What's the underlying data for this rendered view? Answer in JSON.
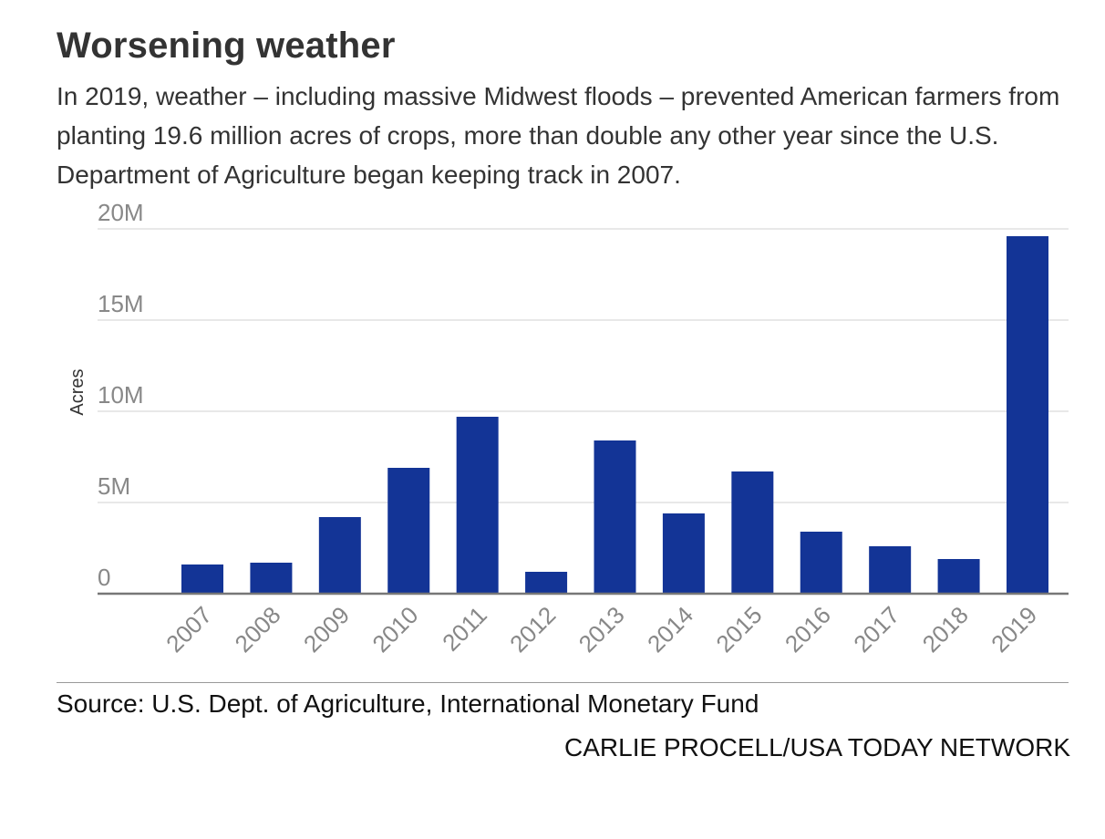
{
  "header": {
    "title": "Worsening weather",
    "subtitle": "In 2019, weather – including massive Midwest floods – prevented American farmers from planting 19.6 million acres of crops, more than double any other year since the U.S. Department of Agriculture began keeping track in 2007."
  },
  "footer": {
    "source": "Source: U.S. Dept. of Agriculture, International Monetary Fund",
    "credit": "CARLIE PROCELL/USA TODAY NETWORK"
  },
  "colors": {
    "bar": "#133496",
    "grid": "#e0e0e0",
    "axis": "#777777",
    "tick": "#888888"
  },
  "chart_data": {
    "type": "bar",
    "title": "Worsening weather",
    "xlabel": "",
    "ylabel": "Acres",
    "categories": [
      "2007",
      "2008",
      "2009",
      "2010",
      "2011",
      "2012",
      "2013",
      "2014",
      "2015",
      "2016",
      "2017",
      "2018",
      "2019"
    ],
    "values": [
      1.6,
      1.7,
      4.2,
      6.9,
      9.7,
      1.2,
      8.4,
      4.4,
      6.7,
      3.4,
      2.6,
      1.9,
      19.6
    ],
    "value_unit": "million acres",
    "ylim": [
      0,
      20
    ],
    "yticks": [
      0,
      5,
      10,
      15,
      20
    ],
    "ytick_labels": [
      "0",
      "5M",
      "10M",
      "15M",
      "20M"
    ],
    "grid": true,
    "legend": "none"
  }
}
